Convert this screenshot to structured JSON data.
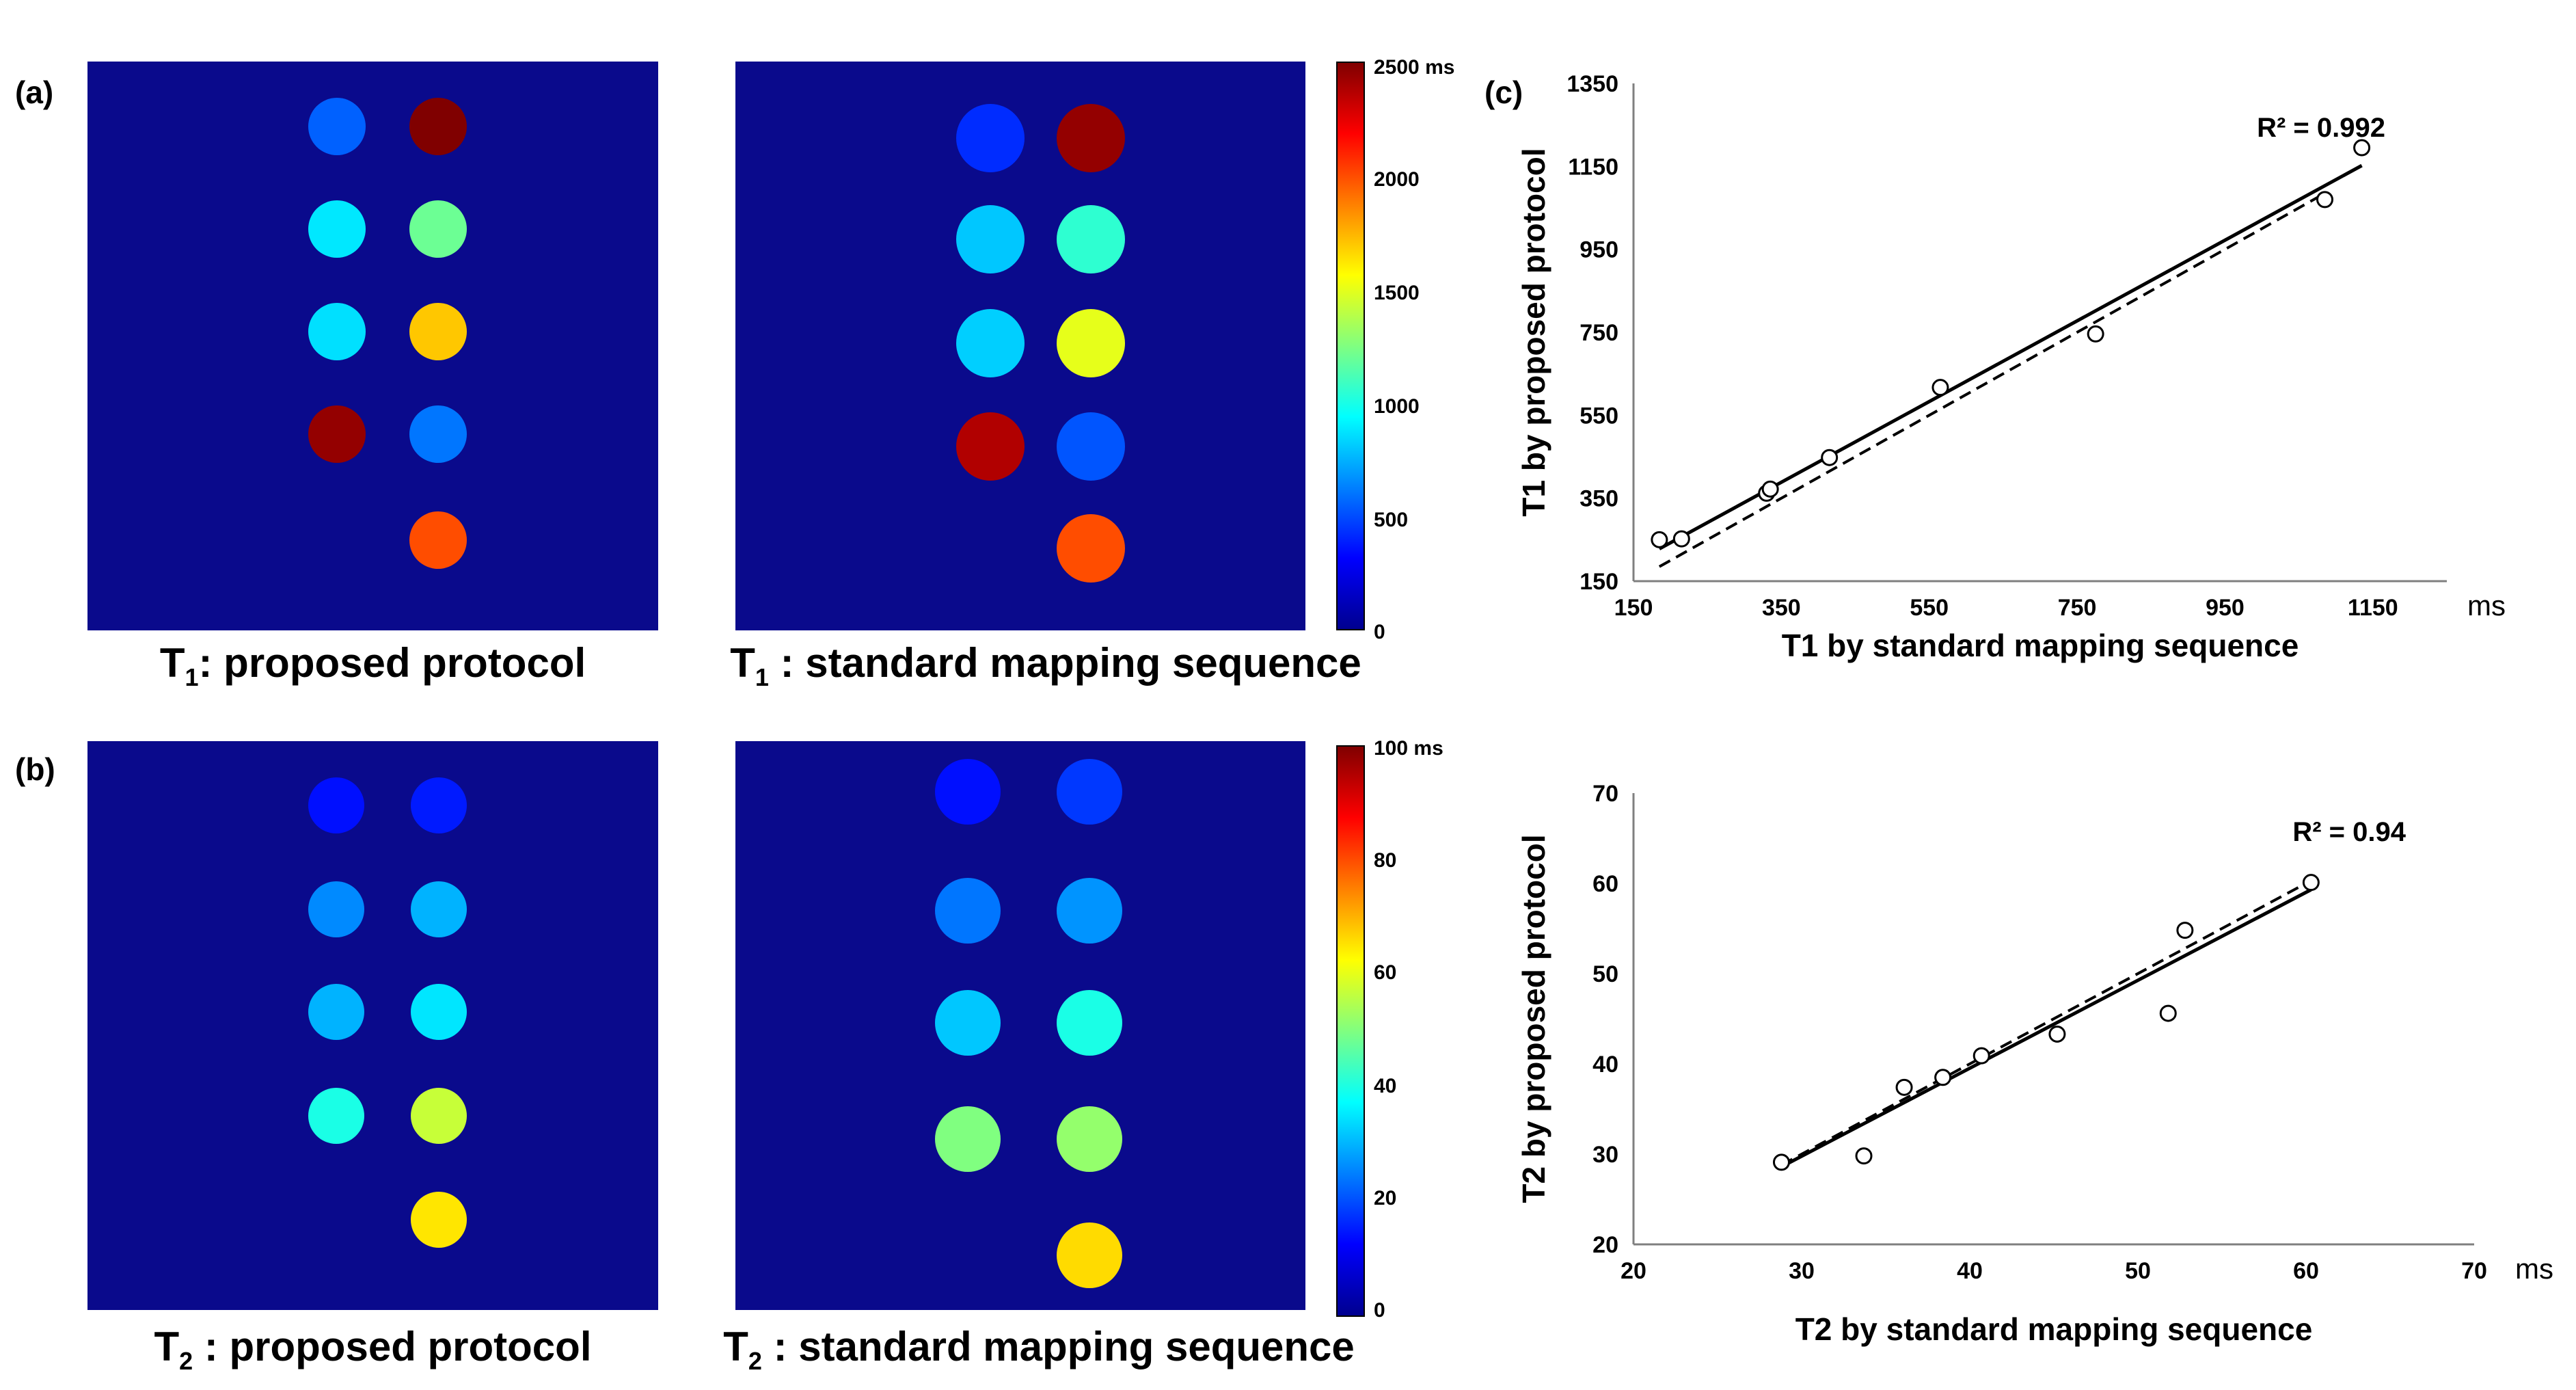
{
  "panel_labels": {
    "a": "(a)",
    "b": "(b)",
    "c": "(c)"
  },
  "colors": {
    "map_background": "#0a0a8c",
    "jet_stops": [
      "#00008f",
      "#0000ff",
      "#0080ff",
      "#00ffff",
      "#80ff80",
      "#ffff00",
      "#ff8000",
      "#ff0000",
      "#800000"
    ]
  },
  "maps": {
    "t1_proposed": {
      "caption_main": "T",
      "caption_sub": "1",
      "caption_rest": ": proposed protocol",
      "vmax": 2500,
      "vials": [
        {
          "col": 0,
          "row": 0,
          "value": 550
        },
        {
          "col": 1,
          "row": 0,
          "value": 2500
        },
        {
          "col": 0,
          "row": 1,
          "value": 880
        },
        {
          "col": 1,
          "row": 1,
          "value": 1200
        },
        {
          "col": 0,
          "row": 2,
          "value": 860
        },
        {
          "col": 1,
          "row": 2,
          "value": 1700
        },
        {
          "col": 0,
          "row": 3,
          "value": 2450
        },
        {
          "col": 1,
          "row": 3,
          "value": 600
        },
        {
          "col": 1,
          "row": 4,
          "value": 2000
        }
      ]
    },
    "t1_standard": {
      "caption_main": "T",
      "caption_sub": "1",
      "caption_rest": " : standard mapping sequence",
      "vmax": 2500,
      "vials": [
        {
          "col": 0,
          "row": 0,
          "value": 420
        },
        {
          "col": 1,
          "row": 0,
          "value": 2450
        },
        {
          "col": 0,
          "row": 1,
          "value": 800
        },
        {
          "col": 1,
          "row": 1,
          "value": 1050
        },
        {
          "col": 0,
          "row": 2,
          "value": 820
        },
        {
          "col": 1,
          "row": 2,
          "value": 1500
        },
        {
          "col": 0,
          "row": 3,
          "value": 2380
        },
        {
          "col": 1,
          "row": 3,
          "value": 520
        },
        {
          "col": 1,
          "row": 4,
          "value": 2000
        }
      ]
    },
    "t2_proposed": {
      "caption_main": "T",
      "caption_sub": "2",
      "caption_rest": " : proposed protocol",
      "vmax": 100,
      "vials": [
        {
          "col": 0,
          "row": 0,
          "value": 14
        },
        {
          "col": 1,
          "row": 0,
          "value": 15
        },
        {
          "col": 0,
          "row": 1,
          "value": 26
        },
        {
          "col": 1,
          "row": 1,
          "value": 30
        },
        {
          "col": 0,
          "row": 2,
          "value": 30
        },
        {
          "col": 1,
          "row": 2,
          "value": 35
        },
        {
          "col": 0,
          "row": 3,
          "value": 40
        },
        {
          "col": 1,
          "row": 3,
          "value": 57
        },
        {
          "col": 1,
          "row": 4,
          "value": 65
        }
      ]
    },
    "t2_standard": {
      "caption_main": "T",
      "caption_sub": "2",
      "caption_rest": " : standard mapping sequence",
      "vmax": 100,
      "vials": [
        {
          "col": 0,
          "row": 0,
          "value": 14
        },
        {
          "col": 1,
          "row": 0,
          "value": 18
        },
        {
          "col": 0,
          "row": 1,
          "value": 24
        },
        {
          "col": 1,
          "row": 1,
          "value": 27
        },
        {
          "col": 0,
          "row": 2,
          "value": 32
        },
        {
          "col": 1,
          "row": 2,
          "value": 40
        },
        {
          "col": 0,
          "row": 3,
          "value": 50
        },
        {
          "col": 1,
          "row": 3,
          "value": 52
        },
        {
          "col": 1,
          "row": 4,
          "value": 66
        }
      ]
    }
  },
  "colorbars": {
    "t1": {
      "ticks": [
        "2500 ms",
        "2000",
        "1500",
        "1000",
        "500",
        "0"
      ]
    },
    "t2": {
      "ticks": [
        "100 ms",
        "80",
        "60",
        "40",
        "20",
        "0"
      ]
    }
  },
  "chart_data": [
    {
      "type": "scatter",
      "title": "",
      "xlabel": "T1 by standard mapping sequence",
      "ylabel": "T1 by proposed protocol",
      "x_unit": "ms",
      "xlim": [
        150,
        1250
      ],
      "ylim": [
        150,
        1350
      ],
      "xticks": [
        "150",
        "350",
        "550",
        "750",
        "950",
        "1150"
      ],
      "yticks": [
        "150",
        "350",
        "550",
        "750",
        "950",
        "1150",
        "1350"
      ],
      "annotation": "R² = 0.992",
      "points": [
        {
          "x": 185,
          "y": 250
        },
        {
          "x": 215,
          "y": 252
        },
        {
          "x": 330,
          "y": 362
        },
        {
          "x": 335,
          "y": 372
        },
        {
          "x": 415,
          "y": 448
        },
        {
          "x": 565,
          "y": 617
        },
        {
          "x": 775,
          "y": 746
        },
        {
          "x": 1085,
          "y": 1070
        },
        {
          "x": 1135,
          "y": 1195
        }
      ],
      "fit_line": {
        "x": [
          185,
          1135
        ],
        "y": [
          228,
          1152
        ]
      },
      "identity_line": {
        "x": [
          185,
          1085
        ],
        "y": [
          185,
          1085
        ]
      }
    },
    {
      "type": "scatter",
      "title": "",
      "xlabel": "T2 by standard mapping sequence",
      "ylabel": "T2 by proposed protocol",
      "x_unit": "ms",
      "xlim": [
        20,
        70
      ],
      "ylim": [
        20,
        70
      ],
      "xticks": [
        "20",
        "30",
        "40",
        "50",
        "60",
        "70"
      ],
      "yticks": [
        "20",
        "30",
        "40",
        "50",
        "60",
        "70"
      ],
      "annotation": "R² = 0.94",
      "points": [
        {
          "x": 28.8,
          "y": 29.1
        },
        {
          "x": 33.7,
          "y": 29.8
        },
        {
          "x": 36.1,
          "y": 37.4
        },
        {
          "x": 38.4,
          "y": 38.5
        },
        {
          "x": 40.7,
          "y": 40.9
        },
        {
          "x": 45.2,
          "y": 43.3
        },
        {
          "x": 51.8,
          "y": 45.6
        },
        {
          "x": 52.8,
          "y": 54.8
        },
        {
          "x": 60.3,
          "y": 60.1
        }
      ],
      "fit_line": {
        "x": [
          28.8,
          60.3
        ],
        "y": [
          28.6,
          59.3
        ]
      },
      "identity_line": {
        "x": [
          28.8,
          60.3
        ],
        "y": [
          28.8,
          60.3
        ]
      }
    }
  ]
}
